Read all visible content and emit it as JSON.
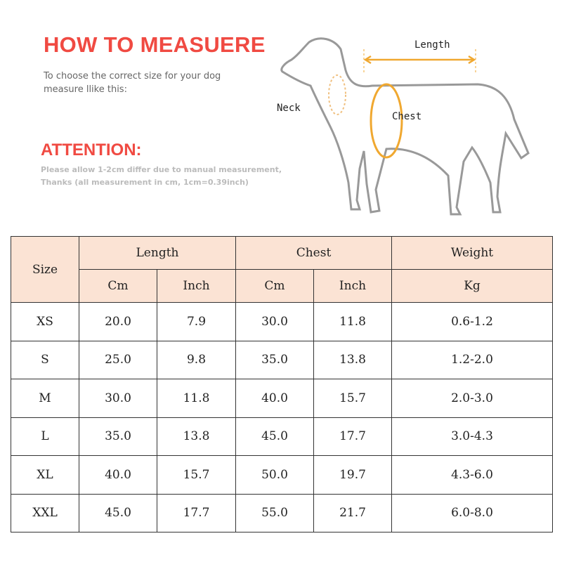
{
  "header": {
    "title": "HOW TO MEASUERE",
    "intro": "To choose the correct size for your dog measure llike this:",
    "attention_title": "ATTENTION:",
    "attention_line1": "Please allow 1-2cm differ due to manual measurement,",
    "attention_line2": "Thanks (all measurement in cm, 1cm=0.39inch)"
  },
  "diagram": {
    "length": "Length",
    "neck": "Neck",
    "chest": "Chest",
    "accent_color": "#f0a830"
  },
  "table": {
    "header_bg": "#fbe3d4",
    "size": "Size",
    "groups": [
      "Length",
      "Chest",
      "Weight"
    ],
    "units": [
      "Cm",
      "Inch",
      "Cm",
      "Inch",
      "Kg"
    ],
    "rows": [
      [
        "XS",
        "20.0",
        "7.9",
        "30.0",
        "11.8",
        "0.6-1.2"
      ],
      [
        "S",
        "25.0",
        "9.8",
        "35.0",
        "13.8",
        "1.2-2.0"
      ],
      [
        "M",
        "30.0",
        "11.8",
        "40.0",
        "15.7",
        "2.0-3.0"
      ],
      [
        "L",
        "35.0",
        "13.8",
        "45.0",
        "17.7",
        "3.0-4.3"
      ],
      [
        "XL",
        "40.0",
        "15.7",
        "50.0",
        "19.7",
        "4.3-6.0"
      ],
      [
        "XXL",
        "45.0",
        "17.7",
        "55.0",
        "21.7",
        "6.0-8.0"
      ]
    ]
  }
}
